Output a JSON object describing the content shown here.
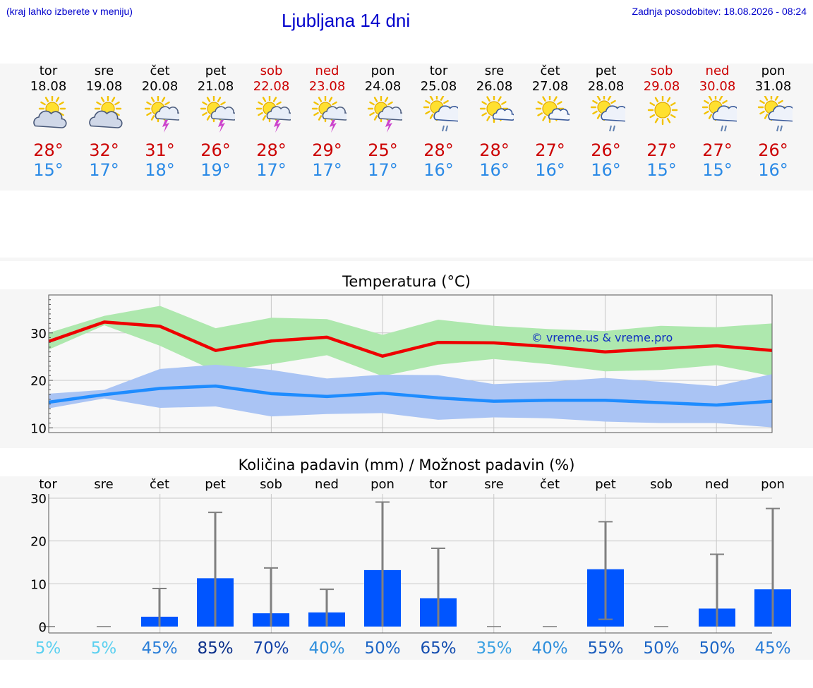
{
  "header": {
    "left_note": "(kraj lahko izberete v meniju)",
    "title": "Ljubljana 14 dni",
    "last_update": "Zadnja posodobitev: 18.08.2026 - 08:24"
  },
  "days": [
    {
      "name": "tor",
      "date": "18.08",
      "weekend": false,
      "icon": "partly-cloudy-icon",
      "tmax": "28°",
      "tmin": "15°"
    },
    {
      "name": "sre",
      "date": "19.08",
      "weekend": false,
      "icon": "partly-cloudy-icon",
      "tmax": "32°",
      "tmin": "17°"
    },
    {
      "name": "čet",
      "date": "20.08",
      "weekend": false,
      "icon": "sun-thunderstorm-icon",
      "tmax": "31°",
      "tmin": "18°"
    },
    {
      "name": "pet",
      "date": "21.08",
      "weekend": false,
      "icon": "sun-thunderstorm-icon",
      "tmax": "26°",
      "tmin": "19°"
    },
    {
      "name": "sob",
      "date": "22.08",
      "weekend": true,
      "icon": "sun-thunderstorm-icon",
      "tmax": "28°",
      "tmin": "17°"
    },
    {
      "name": "ned",
      "date": "23.08",
      "weekend": true,
      "icon": "sun-thunderstorm-icon",
      "tmax": "29°",
      "tmin": "17°"
    },
    {
      "name": "pon",
      "date": "24.08",
      "weekend": false,
      "icon": "sun-thunderstorm-icon",
      "tmax": "25°",
      "tmin": "17°"
    },
    {
      "name": "tor",
      "date": "25.08",
      "weekend": false,
      "icon": "sun-rain-icon",
      "tmax": "28°",
      "tmin": "16°"
    },
    {
      "name": "sre",
      "date": "26.08",
      "weekend": false,
      "icon": "sun-small-cloud-icon",
      "tmax": "28°",
      "tmin": "16°"
    },
    {
      "name": "čet",
      "date": "27.08",
      "weekend": false,
      "icon": "sun-small-cloud-icon",
      "tmax": "27°",
      "tmin": "16°"
    },
    {
      "name": "pet",
      "date": "28.08",
      "weekend": false,
      "icon": "sun-rain-icon",
      "tmax": "26°",
      "tmin": "16°"
    },
    {
      "name": "sob",
      "date": "29.08",
      "weekend": true,
      "icon": "sun-icon",
      "tmax": "27°",
      "tmin": "15°"
    },
    {
      "name": "ned",
      "date": "30.08",
      "weekend": true,
      "icon": "sun-rain-icon",
      "tmax": "27°",
      "tmin": "15°"
    },
    {
      "name": "pon",
      "date": "31.08",
      "weekend": false,
      "icon": "sun-rain-icon",
      "tmax": "26°",
      "tmin": "16°"
    }
  ],
  "colors": {
    "weekend": "#cc0000",
    "max_line": "#ee0000",
    "max_band": "#aee8ae",
    "min_line": "#1e8cff",
    "min_band": "#aac4f4",
    "precip_bar": "#0055ff",
    "error_bar": "#808080"
  },
  "chart_data": [
    {
      "type": "line",
      "title": "Temperatura (°C)",
      "watermark": "© vreme.us & vreme.pro",
      "x": [
        "tor",
        "sre",
        "čet",
        "pet",
        "sob",
        "ned",
        "pon",
        "tor",
        "sre",
        "čet",
        "pet",
        "sob",
        "ned",
        "pon"
      ],
      "ylim": [
        9,
        38
      ],
      "yticks": [
        10,
        20,
        30
      ],
      "grid": true,
      "series": [
        {
          "values": [
            28.2,
            32.3,
            31.4,
            26.3,
            28.3,
            29.1,
            25.1,
            28.0,
            27.9,
            27.1,
            26.0,
            26.7,
            27.3,
            26.3
          ],
          "band_upper": [
            30.0,
            33.6,
            35.7,
            31.0,
            33.2,
            32.9,
            29.6,
            32.8,
            31.5,
            30.8,
            30.4,
            31.5,
            31.2,
            32.0
          ],
          "band_lower": [
            26.5,
            31.6,
            27.3,
            21.9,
            23.4,
            25.3,
            20.9,
            23.3,
            24.5,
            23.4,
            21.9,
            22.2,
            23.2,
            20.9
          ]
        },
        {
          "values": [
            15.4,
            17.0,
            18.3,
            18.8,
            17.2,
            16.6,
            17.3,
            16.3,
            15.6,
            15.8,
            15.8,
            15.3,
            14.8,
            15.6
          ],
          "band_upper": [
            17.2,
            18.0,
            22.4,
            23.3,
            22.2,
            20.4,
            21.2,
            21.1,
            19.2,
            19.7,
            20.5,
            19.7,
            18.8,
            21.3
          ],
          "band_lower": [
            14.1,
            16.2,
            14.2,
            14.5,
            12.4,
            12.9,
            13.1,
            11.7,
            12.2,
            12.0,
            11.3,
            11.0,
            11.0,
            10.1
          ]
        }
      ]
    },
    {
      "type": "bar",
      "title": "Količina padavin (mm) / Možnost padavin (%)",
      "categories": [
        "tor",
        "sre",
        "čet",
        "pet",
        "sob",
        "ned",
        "pon",
        "tor",
        "sre",
        "čet",
        "pet",
        "sob",
        "ned",
        "pon"
      ],
      "ylim": [
        -1.5,
        31
      ],
      "yticks": [
        0,
        10,
        20,
        30
      ],
      "grid": true,
      "series": [
        {
          "values": [
            0,
            0,
            2.3,
            11.3,
            3.1,
            3.3,
            13.2,
            6.6,
            0,
            0,
            13.4,
            0,
            4.2,
            8.7
          ],
          "err_low": [
            0,
            0,
            0,
            0,
            0,
            0,
            0,
            0,
            0,
            0,
            1.7,
            0,
            0,
            0
          ],
          "err_high": [
            0,
            0,
            8.9,
            26.7,
            13.7,
            8.7,
            29.1,
            18.3,
            0,
            0,
            24.5,
            0,
            16.9,
            27.6
          ]
        }
      ],
      "probability": [
        {
          "label": "5%",
          "color": "#5bd0f0"
        },
        {
          "label": "5%",
          "color": "#5bd0f0"
        },
        {
          "label": "45%",
          "color": "#2a7ed8"
        },
        {
          "label": "85%",
          "color": "#0a2f8a"
        },
        {
          "label": "70%",
          "color": "#1443a8"
        },
        {
          "label": "40%",
          "color": "#2f8fdc"
        },
        {
          "label": "50%",
          "color": "#1d66c6"
        },
        {
          "label": "65%",
          "color": "#154eb0"
        },
        {
          "label": "35%",
          "color": "#3aa0e2"
        },
        {
          "label": "40%",
          "color": "#2f8fdc"
        },
        {
          "label": "55%",
          "color": "#1a5cbc"
        },
        {
          "label": "50%",
          "color": "#1d66c6"
        },
        {
          "label": "50%",
          "color": "#1d66c6"
        },
        {
          "label": "45%",
          "color": "#2a7ed8"
        }
      ]
    }
  ]
}
